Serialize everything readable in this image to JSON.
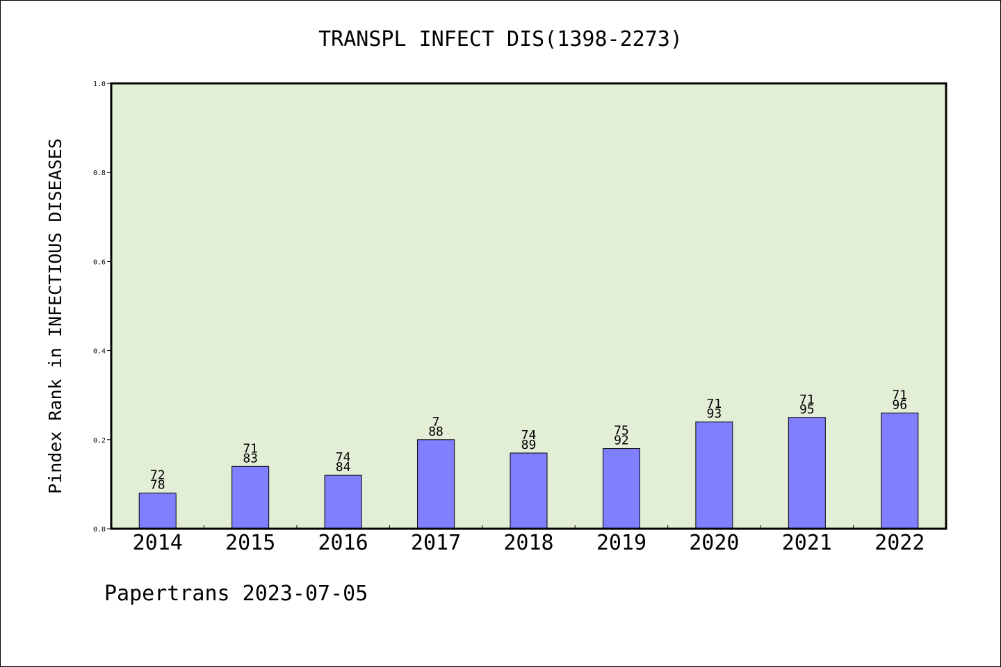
{
  "chart_data": {
    "type": "bar",
    "title": "TRANSPL INFECT DIS(1398-2273)",
    "ylabel": "Pindex Rank in INFECTIOUS DISEASES",
    "xlabel": "",
    "categories": [
      "2014",
      "2015",
      "2016",
      "2017",
      "2018",
      "2019",
      "2020",
      "2021",
      "2022"
    ],
    "values": [
      0.08,
      0.14,
      0.12,
      0.2,
      0.17,
      0.18,
      0.24,
      0.25,
      0.26
    ],
    "labels_top": [
      "72",
      "71",
      "74",
      "7",
      "74",
      "75",
      "71",
      "71",
      "71"
    ],
    "labels_bottom": [
      "78",
      "83",
      "84",
      "88",
      "89",
      "92",
      "93",
      "95",
      "96"
    ],
    "ylim": [
      0,
      1.0
    ],
    "yticks": [
      "0.0",
      "0.2",
      "0.4",
      "0.6",
      "0.8",
      "1.0"
    ],
    "grid": false,
    "colors": {
      "plot_bg": "#e2efd6",
      "bar": "#8080ff"
    }
  },
  "footer": {
    "credit": "Papertrans 2023-07-05"
  }
}
